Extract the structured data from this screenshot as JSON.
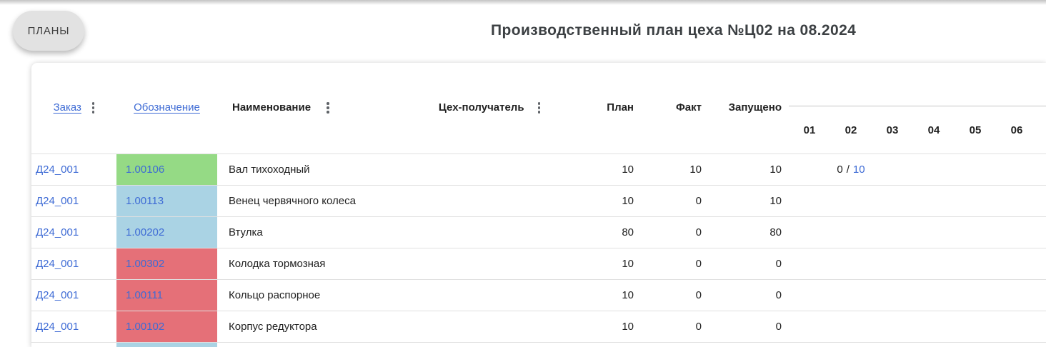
{
  "page": {
    "plans_button": "ПЛАНЫ",
    "title": "Производственный план цеха №Ц02 на 08.2024"
  },
  "table": {
    "columns": {
      "order": "Заказ",
      "designation": "Обозначение",
      "name": "Наименование",
      "receiver": "Цех-получатель",
      "plan": "План",
      "fact": "Факт",
      "launched": "Запущено"
    },
    "days": [
      "01",
      "02",
      "03",
      "04",
      "05",
      "06"
    ],
    "rows": [
      {
        "order": "Д24_001",
        "designation": "1.00106",
        "name": "Вал тихоходный",
        "plan": "10",
        "fact": "10",
        "launched": "10",
        "status_color": "#95da85",
        "day_progress": {
          "day": "02",
          "done": "0",
          "separator": "/",
          "planned": "10"
        }
      },
      {
        "order": "Д24_001",
        "designation": "1.00113",
        "name": "Венец червячного колеса",
        "plan": "10",
        "fact": "0",
        "launched": "10",
        "status_color": "#aad3e4"
      },
      {
        "order": "Д24_001",
        "designation": "1.00202",
        "name": "Втулка",
        "plan": "80",
        "fact": "0",
        "launched": "80",
        "status_color": "#aad3e4"
      },
      {
        "order": "Д24_001",
        "designation": "1.00302",
        "name": "Колодка тормозная",
        "plan": "10",
        "fact": "0",
        "launched": "0",
        "status_color": "#e57078"
      },
      {
        "order": "Д24_001",
        "designation": "1.00111",
        "name": "Кольцо распорное",
        "plan": "10",
        "fact": "0",
        "launched": "0",
        "status_color": "#e57078"
      },
      {
        "order": "Д24_001",
        "designation": "1.00102",
        "name": "Корпус редуктора",
        "plan": "10",
        "fact": "0",
        "launched": "0",
        "status_color": "#e57078"
      }
    ],
    "partial_row_color": "#aad3e4"
  },
  "colors": {
    "link_blue": "#3e6bd5",
    "status_green": "#95da85",
    "status_blue": "#aad3e4",
    "status_red": "#e57078",
    "row_border": "#e0e0e0",
    "days_rule": "#c4c4c4",
    "pill_bg": "#e2e2e2"
  }
}
